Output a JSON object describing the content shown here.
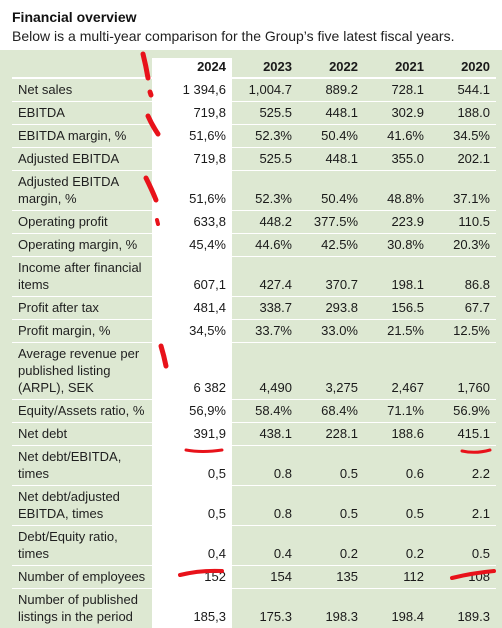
{
  "header": {
    "title": "Financial overview",
    "subtitle": "Below is a multi-year comparison for the Group’s five latest fiscal years."
  },
  "table": {
    "years": [
      "2024",
      "2023",
      "2022",
      "2021",
      "2020"
    ],
    "rows": [
      {
        "label": "Net sales",
        "values": [
          "1 394,6",
          "1,004.7",
          "889.2",
          "728.1",
          "544.1"
        ]
      },
      {
        "label": "EBITDA",
        "values": [
          "719,8",
          "525.5",
          "448.1",
          "302.9",
          "188.0"
        ]
      },
      {
        "label": "EBITDA margin, %",
        "values": [
          "51,6%",
          "52.3%",
          "50.4%",
          "41.6%",
          "34.5%"
        ]
      },
      {
        "label": "Adjusted EBITDA",
        "values": [
          "719,8",
          "525.5",
          "448.1",
          "355.0",
          "202.1"
        ]
      },
      {
        "label": "Adjusted EBITDA margin, %",
        "values": [
          "51,6%",
          "52.3%",
          "50.4%",
          "48.8%",
          "37.1%"
        ]
      },
      {
        "label": "Operating profit",
        "values": [
          "633,8",
          "448.2",
          "377.5%",
          "223.9",
          "110.5"
        ]
      },
      {
        "label": "Operating margin, %",
        "values": [
          "45,4%",
          "44.6%",
          "42.5%",
          "30.8%",
          "20.3%"
        ]
      },
      {
        "label": "Income after financial items",
        "values": [
          "607,1",
          "427.4",
          "370.7",
          "198.1",
          "86.8"
        ]
      },
      {
        "label": "Profit after tax",
        "values": [
          "481,4",
          "338.7",
          "293.8",
          "156.5",
          "67.7"
        ]
      },
      {
        "label": "Profit margin, %",
        "values": [
          "34,5%",
          "33.7%",
          "33.0%",
          "21.5%",
          "12.5%"
        ]
      },
      {
        "label": "Average revenue per published listing (ARPL), SEK",
        "values": [
          "6 382",
          "4,490",
          "3,275",
          "2,467",
          "1,760"
        ]
      },
      {
        "label": "Equity/Assets ratio, %",
        "values": [
          "56,9%",
          "58.4%",
          "68.4%",
          "71.1%",
          "56.9%"
        ]
      },
      {
        "label": "Net debt",
        "values": [
          "391,9",
          "438.1",
          "228.1",
          "188.6",
          "415.1"
        ]
      },
      {
        "label": "Net debt/EBITDA, times",
        "values": [
          "0,5",
          "0.8",
          "0.5",
          "0.6",
          "2.2"
        ]
      },
      {
        "label": "Net debt/adjusted EBITDA, times",
        "values": [
          "0,5",
          "0.8",
          "0.5",
          "0.5",
          "2.1"
        ]
      },
      {
        "label": "Debt/Equity ratio, times",
        "values": [
          "0,4",
          "0.4",
          "0.2",
          "0.2",
          "0.5"
        ]
      },
      {
        "label": "Number of employees",
        "values": [
          "152",
          "154",
          "135",
          "112",
          "108"
        ]
      },
      {
        "label": "Number of published listings in the period",
        "values": [
          "185,3",
          "175.3",
          "198.3",
          "198.4",
          "189.3"
        ]
      }
    ]
  },
  "annotation_color": "#e8121a"
}
